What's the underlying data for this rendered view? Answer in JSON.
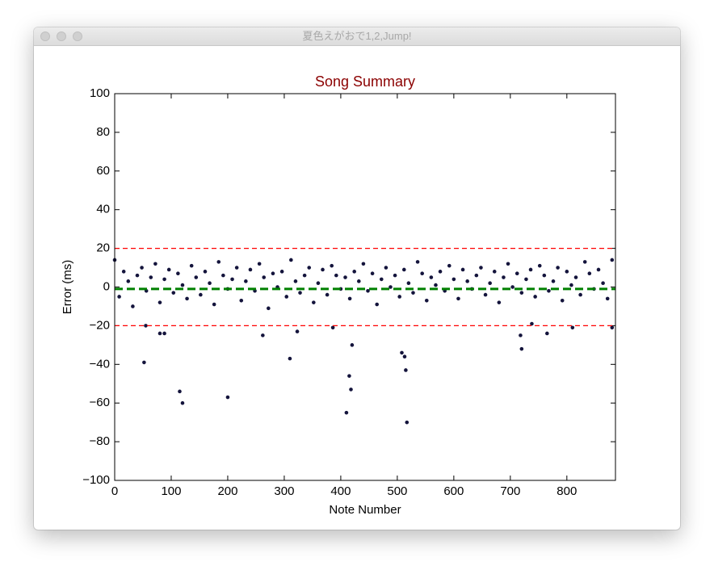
{
  "window": {
    "title": "夏色えがおで1,2,Jump!"
  },
  "chart_data": {
    "type": "scatter",
    "title": "Song Summary",
    "title_color": "#8b0000",
    "x_label": "Note Number",
    "y_label": "Error (ms)",
    "xlim": [
      0,
      886
    ],
    "ylim": [
      -100,
      100
    ],
    "xticks": [
      0,
      100,
      200,
      300,
      400,
      500,
      600,
      700,
      800
    ],
    "yticks": [
      {
        "value": -100,
        "label": "−100"
      },
      {
        "value": -80,
        "label": "−80"
      },
      {
        "value": -60,
        "label": "−60"
      },
      {
        "value": -40,
        "label": "−40"
      },
      {
        "value": -20,
        "label": "−20"
      },
      0,
      20,
      40,
      60,
      80,
      100
    ],
    "color": "#14143c",
    "hlines": [
      {
        "value": 20,
        "color": "#ff0000"
      },
      {
        "value": -20,
        "color": "#ff0000"
      },
      {
        "value": -1,
        "color": "#008000"
      }
    ],
    "x": [
      0,
      8,
      16,
      24,
      32,
      40,
      48,
      56,
      64,
      72,
      80,
      88,
      96,
      104,
      112,
      120,
      128,
      136,
      144,
      152,
      160,
      168,
      176,
      184,
      192,
      200,
      208,
      216,
      224,
      232,
      240,
      248,
      256,
      264,
      272,
      280,
      288,
      296,
      304,
      312,
      320,
      328,
      336,
      344,
      352,
      360,
      368,
      376,
      384,
      392,
      400,
      408,
      416,
      424,
      432,
      440,
      448,
      456,
      464,
      472,
      480,
      488,
      496,
      504,
      512,
      520,
      528,
      536,
      544,
      552,
      560,
      568,
      576,
      584,
      592,
      600,
      608,
      616,
      624,
      632,
      640,
      648,
      656,
      664,
      672,
      680,
      688,
      696,
      704,
      712,
      720,
      728,
      736,
      744,
      752,
      760,
      768,
      776,
      784,
      792,
      800,
      808,
      816,
      824,
      832,
      840,
      848,
      856,
      864,
      872,
      880,
      52,
      115,
      120,
      200,
      310,
      410,
      415,
      418,
      420,
      508,
      513,
      515,
      517,
      720,
      718,
      55,
      80,
      88,
      262,
      386,
      810,
      880,
      323,
      738,
      765
    ],
    "y": [
      14,
      -5,
      8,
      3,
      -10,
      6,
      10,
      -2,
      5,
      12,
      -8,
      4,
      9,
      -3,
      7,
      1,
      -6,
      11,
      5,
      -4,
      8,
      2,
      -9,
      13,
      6,
      -1,
      4,
      10,
      -7,
      3,
      9,
      -2,
      12,
      5,
      -11,
      7,
      0,
      8,
      -5,
      14,
      3,
      -3,
      6,
      10,
      -8,
      2,
      9,
      -4,
      11,
      6,
      -1,
      5,
      -6,
      8,
      3,
      12,
      -2,
      7,
      -9,
      4,
      10,
      0,
      6,
      -5,
      9,
      2,
      -3,
      13,
      7,
      -7,
      5,
      1,
      8,
      -2,
      11,
      4,
      -6,
      9,
      3,
      -1,
      6,
      10,
      -4,
      2,
      8,
      -8,
      5,
      12,
      0,
      7,
      -3,
      4,
      9,
      -5,
      11,
      6,
      -2,
      3,
      10,
      -7,
      8,
      1,
      5,
      -4,
      13,
      7,
      -1,
      9,
      2,
      -6,
      14,
      -39,
      -54,
      -60,
      -57,
      -37,
      -65,
      -46,
      -53,
      -30,
      -34,
      -36,
      -43,
      -70,
      -32,
      -25,
      -20,
      -24,
      -24,
      -25,
      -21,
      -21,
      -21,
      -23,
      -19,
      -24
    ]
  }
}
